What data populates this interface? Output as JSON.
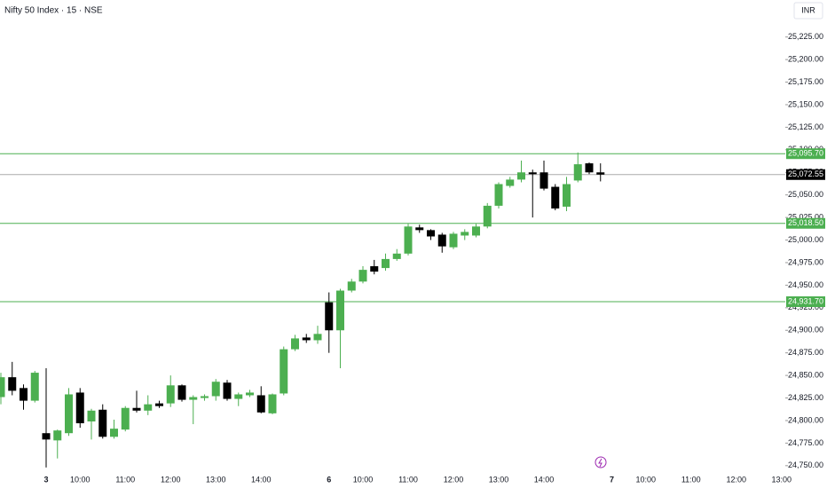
{
  "chart_data": {
    "type": "candlestick",
    "title": "Nifty 50 Index · 15 · NSE",
    "currency": "INR",
    "categories": [
      null,
      null,
      null,
      null,
      "3",
      null,
      null,
      "10:00",
      null,
      null,
      null,
      "11:00",
      null,
      null,
      null,
      "12:00",
      null,
      null,
      null,
      "13:00",
      null,
      null,
      null,
      "14:00",
      null,
      null,
      null,
      null,
      null,
      "6",
      null,
      null,
      "10:00",
      null,
      null,
      null,
      "11:00",
      null,
      null,
      null,
      "12:00",
      null,
      null,
      null,
      "13:00",
      null,
      null,
      null,
      "14:00",
      null,
      null,
      null,
      null,
      null,
      "7",
      null,
      null,
      "10:00",
      null,
      null,
      null,
      "11:00",
      null,
      null,
      null,
      "12:00",
      null,
      null,
      null,
      "13:00"
    ],
    "open": [
      24826,
      24848,
      24836,
      24822,
      24786,
      24778,
      24786,
      24831,
      24799,
      24812,
      24782,
      24790,
      24814,
      24811,
      24819,
      24819,
      24839,
      24823,
      24825,
      24827,
      24842,
      24824,
      24828,
      24828,
      24808,
      24830,
      24879,
      24892,
      24889,
      24931,
      24900,
      24944,
      24954,
      24971,
      24969,
      24979,
      24985,
      25014,
      25011,
      25006,
      24992,
      25005,
      25005,
      25015,
      25038,
      25060,
      25067,
      25075,
      25075,
      25059,
      25037,
      25066,
      25085,
      25075,
      null,
      null,
      null,
      null,
      null,
      null,
      null,
      null,
      null,
      null,
      null,
      null,
      null,
      null,
      null,
      null
    ],
    "high": [
      24853,
      24865,
      24840,
      24855,
      24858,
      24790,
      24836,
      24836,
      24813,
      24818,
      24801,
      24816,
      24833,
      24828,
      24822,
      24850,
      24840,
      24828,
      24829,
      24846,
      24845,
      24831,
      24834,
      24838,
      24830,
      24882,
      24895,
      24896,
      24905,
      24942,
      24946,
      24957,
      24971,
      24978,
      24985,
      24990,
      25018,
      25017,
      25012,
      25008,
      25009,
      25012,
      25018,
      25041,
      25064,
      25070,
      25088,
      25078,
      25088,
      25062,
      25070,
      25097,
      25086,
      25085,
      null,
      null,
      null,
      null,
      null,
      null,
      null,
      null,
      null,
      null,
      null,
      null,
      null,
      null,
      null,
      null
    ],
    "low": [
      24818,
      24828,
      24812,
      24820,
      24748,
      24758,
      24783,
      24792,
      24779,
      24780,
      24780,
      24788,
      24809,
      24806,
      24814,
      24815,
      24821,
      24796,
      24822,
      24822,
      24822,
      24816,
      24826,
      24808,
      24807,
      24828,
      24877,
      24886,
      24885,
      24875,
      24858,
      24942,
      24952,
      24962,
      24966,
      24977,
      24983,
      25008,
      25000,
      24986,
      24990,
      25000,
      25003,
      25013,
      25035,
      25058,
      25064,
      25025,
      25055,
      25033,
      25032,
      25064,
      25073,
      25065,
      null,
      null,
      null,
      null,
      null,
      null,
      null,
      null,
      null,
      null,
      null,
      null,
      null,
      null,
      null,
      null
    ],
    "close": [
      24848,
      24833,
      24822,
      24853,
      24779,
      24789,
      24829,
      24797,
      24811,
      24782,
      24791,
      24814,
      24811,
      24818,
      24816,
      24839,
      24823,
      24826,
      24827,
      24843,
      24824,
      24829,
      24831,
      24809,
      24829,
      24879,
      24891,
      24889,
      24896,
      24900,
      24944,
      24954,
      24967,
      24965,
      24979,
      24985,
      25015,
      25011,
      25004,
      24993,
      25007,
      25009,
      25015,
      25038,
      25062,
      25067,
      25075,
      25073,
      25057,
      25035,
      25062,
      25084,
      25075,
      25072.55,
      null,
      null,
      null,
      null,
      null,
      null,
      null,
      null,
      null,
      null,
      null,
      null,
      null,
      null,
      null,
      null
    ],
    "up_color": "#4caf50",
    "down_color": "#000000",
    "ylim": [
      24740,
      25266
    ],
    "yticks": [
      {
        "value": 24750,
        "label": "24,750.00"
      },
      {
        "value": 24775,
        "label": "24,775.00"
      },
      {
        "value": 24800,
        "label": "24,800.00"
      },
      {
        "value": 24825,
        "label": "24,825.00"
      },
      {
        "value": 24850,
        "label": "24,850.00"
      },
      {
        "value": 24875,
        "label": "24,875.00"
      },
      {
        "value": 24900,
        "label": "24,900.00"
      },
      {
        "value": 24925,
        "label": "24,925.00"
      },
      {
        "value": 24950,
        "label": "24,950.00"
      },
      {
        "value": 24975,
        "label": "24,975.00"
      },
      {
        "value": 25000,
        "label": "25,000.00"
      },
      {
        "value": 25025,
        "label": "25,025.00"
      },
      {
        "value": 25050,
        "label": "25,050.00"
      },
      {
        "value": 25075,
        "label": "25,075.00"
      },
      {
        "value": 25100,
        "label": "25,100.00"
      },
      {
        "value": 25125,
        "label": "25,125.00"
      },
      {
        "value": 25150,
        "label": "25,150.00"
      },
      {
        "value": 25175,
        "label": "25,175.00"
      },
      {
        "value": 25200,
        "label": "25,200.00"
      },
      {
        "value": 25225,
        "label": "25,225.00"
      }
    ],
    "price_lines": [
      {
        "value": 25095.7,
        "label": "25,095.70",
        "color": "#4caf50"
      },
      {
        "value": 25072.55,
        "label": "25,072.55",
        "color": "#000000"
      },
      {
        "value": 25018.5,
        "label": "25,018.50",
        "color": "#4caf50"
      },
      {
        "value": 24931.7,
        "label": "24,931.70",
        "color": "#4caf50"
      }
    ],
    "grid": false
  }
}
